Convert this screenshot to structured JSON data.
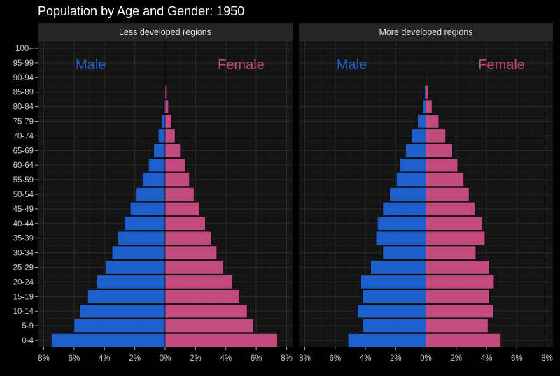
{
  "title": "Population by Age and Gender: 1950",
  "colors": {
    "background": "#000000",
    "panel": "#141414",
    "strip": "#262626",
    "grid": "#262626",
    "text": "#ffffff",
    "tick_text": "#cccccc",
    "male": "#1f5fcc",
    "female": "#c24a7c"
  },
  "chart_data": {
    "type": "bar",
    "orientation": "horizontal",
    "title": "Population by Age and Gender: 1950",
    "xlabel": "",
    "ylabel": "",
    "categories": [
      "0-4",
      "5-9",
      "10-14",
      "15-19",
      "20-24",
      "25-29",
      "30-34",
      "35-39",
      "40-44",
      "45-49",
      "50-54",
      "55-59",
      "60-64",
      "65-69",
      "70-74",
      "75-79",
      "80-84",
      "85-89",
      "90-94",
      "95-99",
      "100+"
    ],
    "x_ticks": [
      "8%",
      "6%",
      "4%",
      "2%",
      "0%",
      "2%",
      "4%",
      "6%",
      "8%"
    ],
    "xlim": [
      -8,
      8
    ],
    "grid": true,
    "legend": "in-panel labels",
    "panels": [
      {
        "name": "Less developed regions",
        "male_label": "Male",
        "female_label": "Female",
        "series": [
          {
            "name": "Male",
            "values": [
              7.5,
              6.0,
              5.6,
              5.1,
              4.5,
              3.9,
              3.5,
              3.1,
              2.7,
              2.3,
              1.9,
              1.5,
              1.1,
              0.75,
              0.45,
              0.22,
              0.1,
              0.03,
              0.01,
              0.003,
              0.001
            ]
          },
          {
            "name": "Female",
            "values": [
              7.4,
              5.8,
              5.4,
              4.9,
              4.4,
              3.8,
              3.4,
              3.05,
              2.65,
              2.25,
              1.9,
              1.6,
              1.35,
              1.0,
              0.65,
              0.42,
              0.22,
              0.08,
              0.02,
              0.005,
              0.001
            ]
          }
        ]
      },
      {
        "name": "More developed regions",
        "male_label": "Male",
        "female_label": "Female",
        "series": [
          {
            "name": "Male",
            "values": [
              5.15,
              4.2,
              4.5,
              4.2,
              4.3,
              3.65,
              2.85,
              3.3,
              3.2,
              2.85,
              2.4,
              1.95,
              1.7,
              1.35,
              0.95,
              0.55,
              0.22,
              0.09,
              0.03,
              0.01,
              0.002
            ]
          },
          {
            "name": "Female",
            "values": [
              4.95,
              4.1,
              4.45,
              4.2,
              4.5,
              4.2,
              3.3,
              3.9,
              3.7,
              3.25,
              2.85,
              2.5,
              2.1,
              1.75,
              1.3,
              0.85,
              0.4,
              0.15,
              0.05,
              0.01,
              0.002
            ]
          }
        ]
      }
    ]
  }
}
